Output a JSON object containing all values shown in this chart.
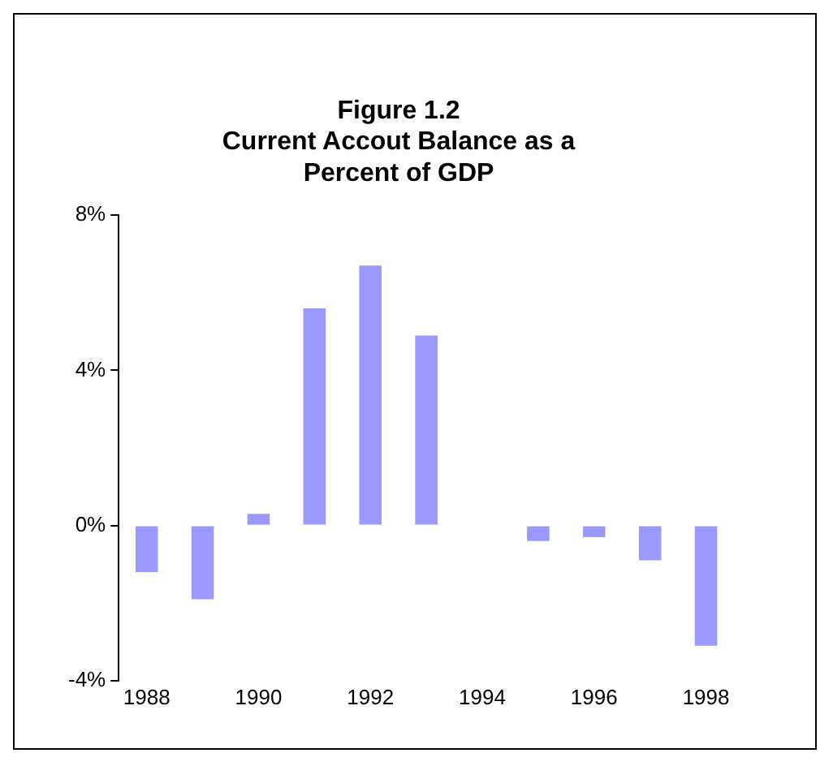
{
  "chart_data": {
    "type": "bar",
    "title": "Figure 1.2\nCurrent Accout Balance as a\nPercent of GDP",
    "categories": [
      "1988",
      null,
      "1990",
      null,
      "1992",
      null,
      "1994",
      null,
      "1996",
      null,
      "1998"
    ],
    "values": [
      -1.2,
      -1.9,
      0.3,
      5.6,
      6.7,
      4.9,
      0.0,
      -0.4,
      -0.3,
      -0.9,
      -3.1
    ],
    "color": "#9999ff",
    "ylim": [
      -4,
      8
    ],
    "yticks": [
      {
        "value": -4,
        "label": "-4%"
      },
      {
        "value": 0,
        "label": "0%"
      },
      {
        "value": 4,
        "label": "4%"
      },
      {
        "value": 8,
        "label": "8%"
      }
    ],
    "grid": false
  }
}
